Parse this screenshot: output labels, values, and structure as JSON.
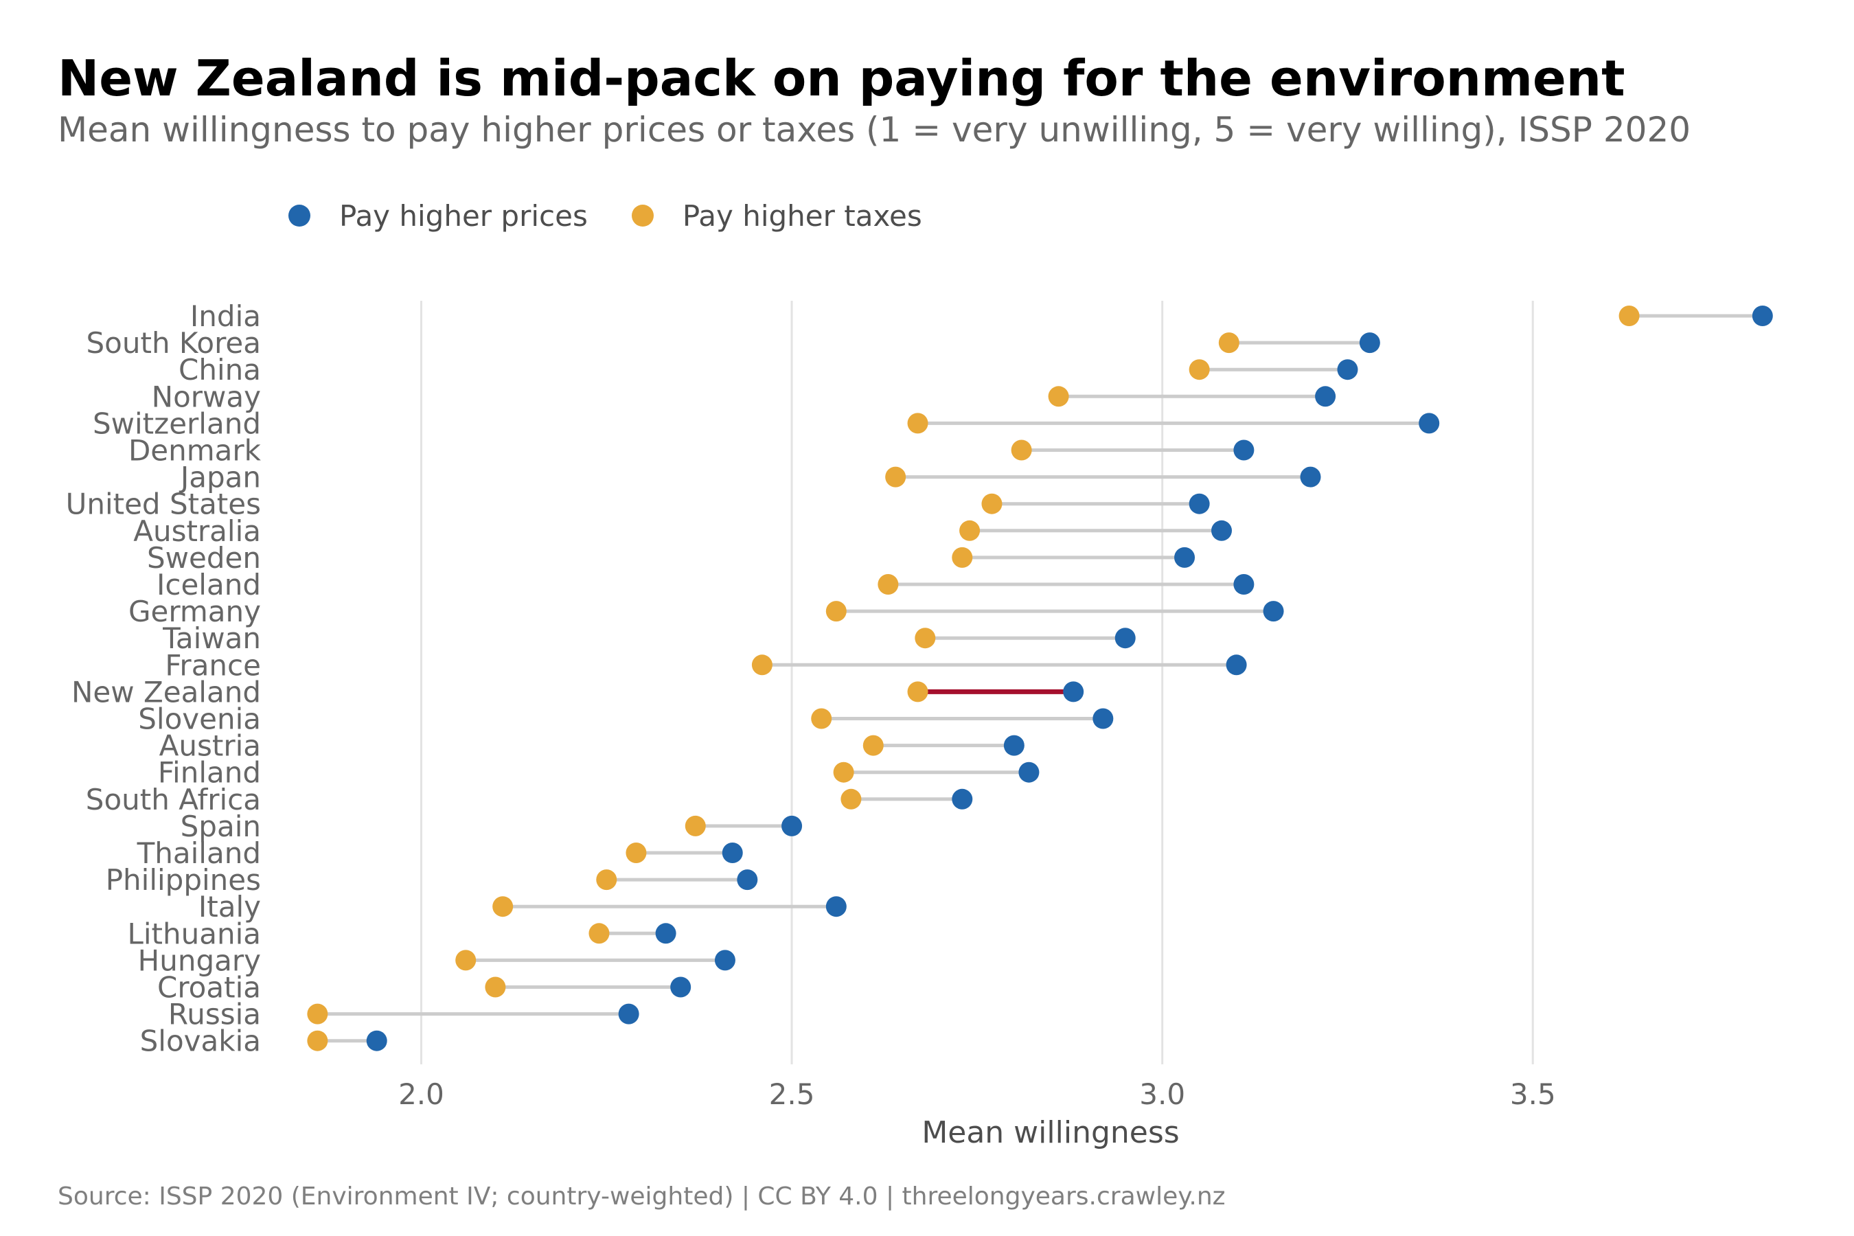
{
  "title": "New Zealand is mid-pack on paying for the environment",
  "subtitle": "Mean willingness to pay higher prices or taxes (1 = very unwilling, 5 = very willing), ISSP 2020",
  "caption": "Source: ISSP 2020 (Environment IV; country-weighted) | CC BY 4.0 | threelongyears.crawley.nz",
  "legend": {
    "placement": "top-left",
    "items": [
      {
        "label": "Pay higher prices",
        "color": "#2166ac"
      },
      {
        "label": "Pay higher taxes",
        "color": "#e8a838"
      }
    ]
  },
  "colors": {
    "prices": "#2166ac",
    "taxes": "#e8a838",
    "highlight": "#a50f2d",
    "connector": "#cccccc",
    "grid": "#e3e3e3"
  },
  "chart_data": {
    "type": "scatter",
    "subtype": "dumbbell",
    "xlabel": "Mean willingness",
    "ylabel": "",
    "xlim": [
      1.83,
      3.85
    ],
    "xticks": [
      2.0,
      2.5,
      3.0,
      3.5
    ],
    "xtick_labels": [
      "2.0",
      "2.5",
      "3.0",
      "3.5"
    ],
    "grid": "vertical",
    "highlight": "New Zealand",
    "categories": [
      "India",
      "South Korea",
      "China",
      "Norway",
      "Switzerland",
      "Denmark",
      "Japan",
      "United States",
      "Australia",
      "Sweden",
      "Iceland",
      "Germany",
      "Taiwan",
      "France",
      "New Zealand",
      "Slovenia",
      "Austria",
      "Finland",
      "South Africa",
      "Spain",
      "Thailand",
      "Philippines",
      "Italy",
      "Lithuania",
      "Hungary",
      "Croatia",
      "Russia",
      "Slovakia"
    ],
    "series": [
      {
        "name": "Pay higher prices",
        "values": [
          3.81,
          3.28,
          3.25,
          3.22,
          3.36,
          3.11,
          3.2,
          3.05,
          3.08,
          3.03,
          3.11,
          3.15,
          2.95,
          3.1,
          2.88,
          2.92,
          2.8,
          2.82,
          2.73,
          2.5,
          2.42,
          2.44,
          2.56,
          2.33,
          2.41,
          2.35,
          2.28,
          1.94
        ]
      },
      {
        "name": "Pay higher taxes",
        "values": [
          3.63,
          3.09,
          3.05,
          2.86,
          2.67,
          2.81,
          2.64,
          2.77,
          2.74,
          2.73,
          2.63,
          2.56,
          2.68,
          2.46,
          2.67,
          2.54,
          2.61,
          2.57,
          2.58,
          2.37,
          2.29,
          2.25,
          2.11,
          2.24,
          2.06,
          2.1,
          1.86,
          1.86
        ]
      }
    ]
  }
}
